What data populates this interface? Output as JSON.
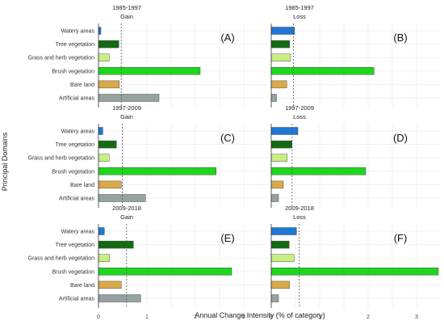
{
  "figure": {
    "ylabel": "Principal Domains",
    "xlabel": "Annual Change Intensity (% of category)"
  },
  "colors": {
    "Watery areas": "#1f78d4",
    "Tree vegetation": "#146b14",
    "Grass and herb vegetation": "#c8ef82",
    "Brush vegetation": "#1fd61f",
    "Bare land": "#d9a94a",
    "Artificial areas": "#95a3a0"
  },
  "chart_data": [
    {
      "type": "bar",
      "orientation": "horizontal",
      "period": "1985-1997",
      "change": "Gain",
      "letter": "(A)",
      "categories": [
        "Watery areas",
        "Tree vegetation",
        "Grass and herb vegetation",
        "Brush vegetation",
        "Bare land",
        "Artificial areas"
      ],
      "values": [
        0.05,
        0.42,
        0.22,
        2.1,
        0.43,
        1.25
      ],
      "uniform_intensity": 0.47,
      "xlim": [
        0,
        3.5
      ],
      "xticks": [
        0,
        1,
        2,
        3
      ]
    },
    {
      "type": "bar",
      "orientation": "horizontal",
      "period": "1985-1997",
      "change": "Loss",
      "letter": "(B)",
      "categories": [
        "Watery areas",
        "Tree vegetation",
        "Grass and herb vegetation",
        "Brush vegetation",
        "Bare land",
        "Artificial areas"
      ],
      "values": [
        0.48,
        0.38,
        0.4,
        2.12,
        0.32,
        0.11
      ],
      "uniform_intensity": 0.46,
      "xlim": [
        0,
        3.5
      ],
      "xticks": [
        0,
        1,
        2,
        3
      ]
    },
    {
      "type": "bar",
      "orientation": "horizontal",
      "period": "1997-2009",
      "change": "Gain",
      "letter": "(C)",
      "categories": [
        "Watery areas",
        "Tree vegetation",
        "Grass and herb vegetation",
        "Brush vegetation",
        "Bare land",
        "Artificial areas"
      ],
      "values": [
        0.09,
        0.37,
        0.22,
        2.43,
        0.47,
        0.97
      ],
      "uniform_intensity": 0.49,
      "xlim": [
        0,
        3.5
      ],
      "xticks": [
        0,
        1,
        2,
        3
      ]
    },
    {
      "type": "bar",
      "orientation": "horizontal",
      "period": "1997-2009",
      "change": "Loss",
      "letter": "(D)",
      "categories": [
        "Watery areas",
        "Tree vegetation",
        "Grass and herb vegetation",
        "Brush vegetation",
        "Bare land",
        "Artificial areas"
      ],
      "values": [
        0.55,
        0.43,
        0.33,
        1.95,
        0.25,
        0.15
      ],
      "uniform_intensity": 0.43,
      "xlim": [
        0,
        3.5
      ],
      "xticks": [
        0,
        1,
        2,
        3
      ]
    },
    {
      "type": "bar",
      "orientation": "horizontal",
      "period": "2009-2018",
      "change": "Gain",
      "letter": "(E)",
      "categories": [
        "Watery areas",
        "Tree vegetation",
        "Grass and herb vegetation",
        "Brush vegetation",
        "Bare land",
        "Artificial areas"
      ],
      "values": [
        0.12,
        0.72,
        0.23,
        2.75,
        0.47,
        0.87
      ],
      "uniform_intensity": 0.58,
      "xlim": [
        0,
        3.5
      ],
      "xticks": [
        0,
        1,
        2,
        3
      ]
    },
    {
      "type": "bar",
      "orientation": "horizontal",
      "period": "2009-2018",
      "change": "Loss",
      "letter": "(F)",
      "categories": [
        "Watery areas",
        "Tree vegetation",
        "Grass and herb vegetation",
        "Brush vegetation",
        "Bare land",
        "Artificial areas"
      ],
      "values": [
        0.52,
        0.37,
        0.47,
        3.45,
        0.38,
        0.15
      ],
      "uniform_intensity": 0.58,
      "xlim": [
        0,
        3.5
      ],
      "xticks": [
        0,
        1,
        2,
        3
      ]
    }
  ]
}
